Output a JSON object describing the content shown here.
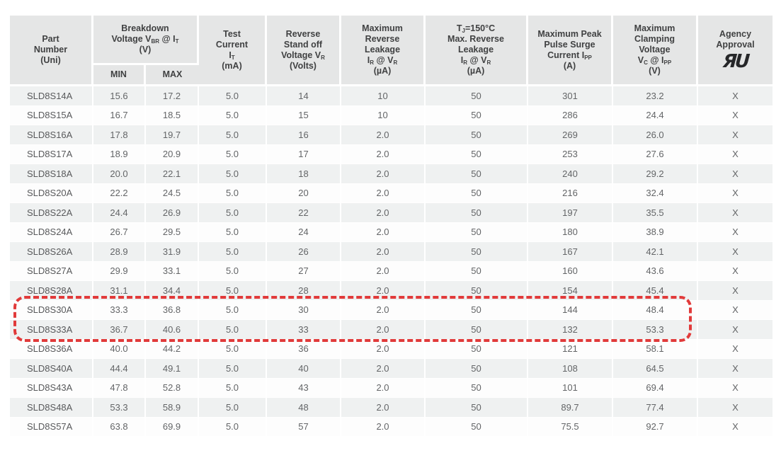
{
  "colors": {
    "highlight_red": "#e13a3a",
    "header_bg": "#e5e6e6",
    "row_alt_bg": "#eff1f1",
    "row_bg": "#fdfdfd",
    "header_text": "#404142",
    "data_text": "#636567"
  },
  "table": {
    "column_keys": [
      "part",
      "min",
      "max",
      "test_current",
      "standoff_voltage",
      "max_reverse_leakage",
      "tj_max_reverse_leakage",
      "peak_pulse_surge",
      "max_clamping_voltage",
      "agency_approval"
    ],
    "headers": {
      "part": [
        [
          "Part"
        ],
        [
          "Number"
        ],
        [
          "(Uni)"
        ]
      ],
      "breakdown": [
        [
          "Breakdown"
        ],
        [
          "Voltage V",
          {
            "sub": "BR"
          },
          " @ I",
          {
            "sub": "T"
          }
        ],
        [
          "(V)"
        ]
      ],
      "min": [
        [
          "MIN"
        ]
      ],
      "max": [
        [
          "MAX"
        ]
      ],
      "test_current": [
        [
          "Test"
        ],
        [
          "Current"
        ],
        [
          "I",
          {
            "sub": "T"
          }
        ],
        [
          "(mA)"
        ]
      ],
      "standoff_voltage": [
        [
          "Reverse"
        ],
        [
          "Stand off"
        ],
        [
          "Voltage V",
          {
            "sub": "R"
          }
        ],
        [
          "(Volts)"
        ]
      ],
      "max_reverse_leakage": [
        [
          "Maximum"
        ],
        [
          "Reverse"
        ],
        [
          "Leakage"
        ],
        [
          "I",
          {
            "sub": "R"
          },
          " @ V",
          {
            "sub": "R"
          }
        ],
        [
          "(µA)"
        ]
      ],
      "tj_max_reverse_leakage": [
        [
          "T",
          {
            "sub": "J"
          },
          "=150°C"
        ],
        [
          "Max. Reverse"
        ],
        [
          "Leakage"
        ],
        [
          "I",
          {
            "sub": "R"
          },
          " @ V",
          {
            "sub": "R"
          }
        ],
        [
          "(µA)"
        ]
      ],
      "peak_pulse_surge": [
        [
          "Maximum Peak"
        ],
        [
          "Pulse Surge"
        ],
        [
          "Current I",
          {
            "sub": "PP"
          }
        ],
        [
          "(A)"
        ]
      ],
      "max_clamping_voltage": [
        [
          "Maximum"
        ],
        [
          "Clamping"
        ],
        [
          "Voltage"
        ],
        [
          "V",
          {
            "sub": "C"
          },
          " @ I",
          {
            "sub": "PP"
          }
        ],
        [
          "(V)"
        ]
      ],
      "agency_approval": [
        [
          "Agency"
        ],
        [
          "Approval"
        ]
      ]
    },
    "agency_logo": {
      "name": "UL-recognized-component-mark",
      "glyph": "ЯU",
      "tm": "®"
    },
    "rows": [
      {
        "part": "SLD8S14A",
        "min": "15.6",
        "max": "17.2",
        "test_current": "5.0",
        "standoff_voltage": "14",
        "max_reverse_leakage": "10",
        "tj_max_reverse_leakage": "50",
        "peak_pulse_surge": "301",
        "max_clamping_voltage": "23.2",
        "agency_approval": "X"
      },
      {
        "part": "SLD8S15A",
        "min": "16.7",
        "max": "18.5",
        "test_current": "5.0",
        "standoff_voltage": "15",
        "max_reverse_leakage": "10",
        "tj_max_reverse_leakage": "50",
        "peak_pulse_surge": "286",
        "max_clamping_voltage": "24.4",
        "agency_approval": "X"
      },
      {
        "part": "SLD8S16A",
        "min": "17.8",
        "max": "19.7",
        "test_current": "5.0",
        "standoff_voltage": "16",
        "max_reverse_leakage": "2.0",
        "tj_max_reverse_leakage": "50",
        "peak_pulse_surge": "269",
        "max_clamping_voltage": "26.0",
        "agency_approval": "X"
      },
      {
        "part": "SLD8S17A",
        "min": "18.9",
        "max": "20.9",
        "test_current": "5.0",
        "standoff_voltage": "17",
        "max_reverse_leakage": "2.0",
        "tj_max_reverse_leakage": "50",
        "peak_pulse_surge": "253",
        "max_clamping_voltage": "27.6",
        "agency_approval": "X"
      },
      {
        "part": "SLD8S18A",
        "min": "20.0",
        "max": "22.1",
        "test_current": "5.0",
        "standoff_voltage": "18",
        "max_reverse_leakage": "2.0",
        "tj_max_reverse_leakage": "50",
        "peak_pulse_surge": "240",
        "max_clamping_voltage": "29.2",
        "agency_approval": "X"
      },
      {
        "part": "SLD8S20A",
        "min": "22.2",
        "max": "24.5",
        "test_current": "5.0",
        "standoff_voltage": "20",
        "max_reverse_leakage": "2.0",
        "tj_max_reverse_leakage": "50",
        "peak_pulse_surge": "216",
        "max_clamping_voltage": "32.4",
        "agency_approval": "X"
      },
      {
        "part": "SLD8S22A",
        "min": "24.4",
        "max": "26.9",
        "test_current": "5.0",
        "standoff_voltage": "22",
        "max_reverse_leakage": "2.0",
        "tj_max_reverse_leakage": "50",
        "peak_pulse_surge": "197",
        "max_clamping_voltage": "35.5",
        "agency_approval": "X"
      },
      {
        "part": "SLD8S24A",
        "min": "26.7",
        "max": "29.5",
        "test_current": "5.0",
        "standoff_voltage": "24",
        "max_reverse_leakage": "2.0",
        "tj_max_reverse_leakage": "50",
        "peak_pulse_surge": "180",
        "max_clamping_voltage": "38.9",
        "agency_approval": "X"
      },
      {
        "part": "SLD8S26A",
        "min": "28.9",
        "max": "31.9",
        "test_current": "5.0",
        "standoff_voltage": "26",
        "max_reverse_leakage": "2.0",
        "tj_max_reverse_leakage": "50",
        "peak_pulse_surge": "167",
        "max_clamping_voltage": "42.1",
        "agency_approval": "X"
      },
      {
        "part": "SLD8S27A",
        "min": "29.9",
        "max": "33.1",
        "test_current": "5.0",
        "standoff_voltage": "27",
        "max_reverse_leakage": "2.0",
        "tj_max_reverse_leakage": "50",
        "peak_pulse_surge": "160",
        "max_clamping_voltage": "43.6",
        "agency_approval": "X"
      },
      {
        "part": "SLD8S28A",
        "min": "31.1",
        "max": "34.4",
        "test_current": "5.0",
        "standoff_voltage": "28",
        "max_reverse_leakage": "2.0",
        "tj_max_reverse_leakage": "50",
        "peak_pulse_surge": "154",
        "max_clamping_voltage": "45.4",
        "agency_approval": "X"
      },
      {
        "part": "SLD8S30A",
        "min": "33.3",
        "max": "36.8",
        "test_current": "5.0",
        "standoff_voltage": "30",
        "max_reverse_leakage": "2.0",
        "tj_max_reverse_leakage": "50",
        "peak_pulse_surge": "144",
        "max_clamping_voltage": "48.4",
        "agency_approval": "X"
      },
      {
        "part": "SLD8S33A",
        "min": "36.7",
        "max": "40.6",
        "test_current": "5.0",
        "standoff_voltage": "33",
        "max_reverse_leakage": "2.0",
        "tj_max_reverse_leakage": "50",
        "peak_pulse_surge": "132",
        "max_clamping_voltage": "53.3",
        "agency_approval": "X"
      },
      {
        "part": "SLD8S36A",
        "min": "40.0",
        "max": "44.2",
        "test_current": "5.0",
        "standoff_voltage": "36",
        "max_reverse_leakage": "2.0",
        "tj_max_reverse_leakage": "50",
        "peak_pulse_surge": "121",
        "max_clamping_voltage": "58.1",
        "agency_approval": "X"
      },
      {
        "part": "SLD8S40A",
        "min": "44.4",
        "max": "49.1",
        "test_current": "5.0",
        "standoff_voltage": "40",
        "max_reverse_leakage": "2.0",
        "tj_max_reverse_leakage": "50",
        "peak_pulse_surge": "108",
        "max_clamping_voltage": "64.5",
        "agency_approval": "X"
      },
      {
        "part": "SLD8S43A",
        "min": "47.8",
        "max": "52.8",
        "test_current": "5.0",
        "standoff_voltage": "43",
        "max_reverse_leakage": "2.0",
        "tj_max_reverse_leakage": "50",
        "peak_pulse_surge": "101",
        "max_clamping_voltage": "69.4",
        "agency_approval": "X"
      },
      {
        "part": "SLD8S48A",
        "min": "53.3",
        "max": "58.9",
        "test_current": "5.0",
        "standoff_voltage": "48",
        "max_reverse_leakage": "2.0",
        "tj_max_reverse_leakage": "50",
        "peak_pulse_surge": "89.7",
        "max_clamping_voltage": "77.4",
        "agency_approval": "X"
      },
      {
        "part": "SLD8S57A",
        "min": "63.8",
        "max": "69.9",
        "test_current": "5.0",
        "standoff_voltage": "57",
        "max_reverse_leakage": "2.0",
        "tj_max_reverse_leakage": "50",
        "peak_pulse_surge": "75.5",
        "max_clamping_voltage": "92.7",
        "agency_approval": "X"
      }
    ],
    "highlight": {
      "parts": [
        "SLD8S30A",
        "SLD8S33A"
      ],
      "style": "red-dashed-outline"
    }
  }
}
